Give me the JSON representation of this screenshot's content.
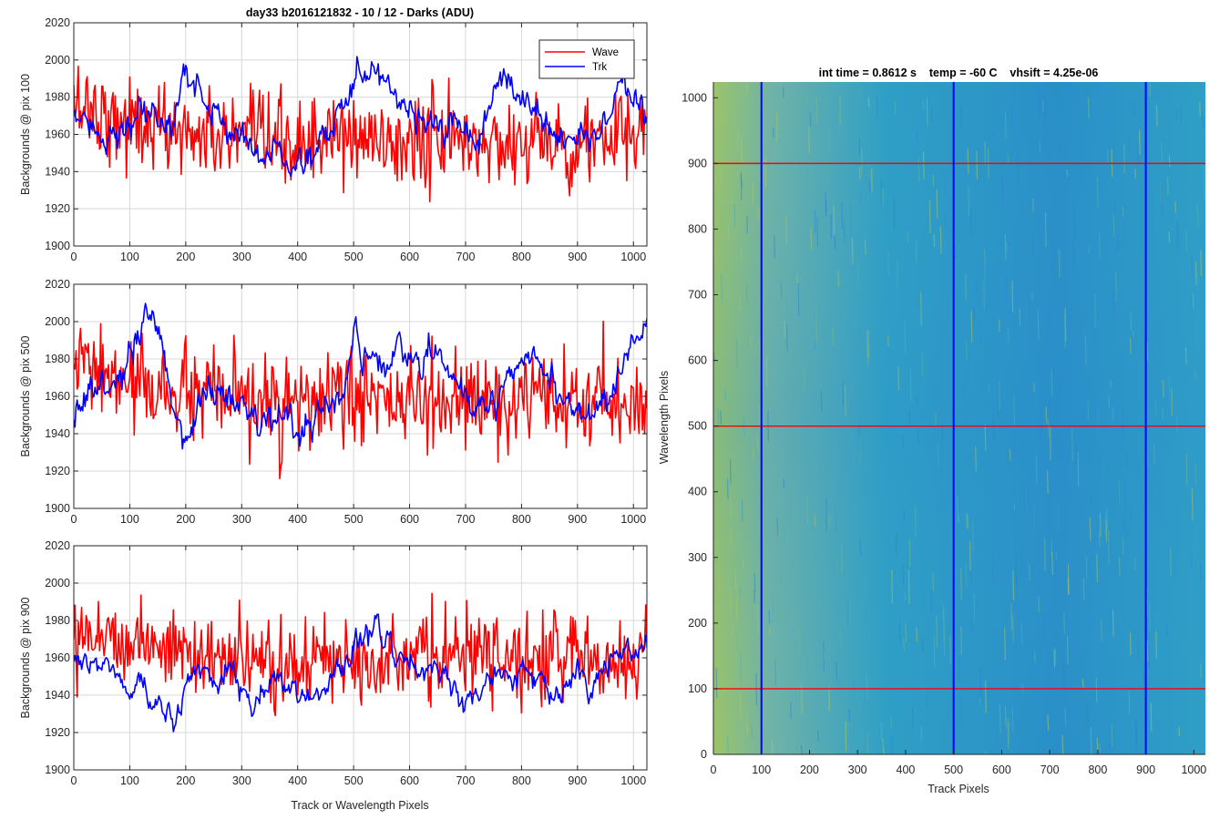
{
  "figure": {
    "title": "day33 b2016121832 - 10 / 12 - Darks (ADU)",
    "heatmap_title": "int time = 0.8612 s    temp = -60 C    vhsift = 4.25e-06",
    "colors": {
      "wave": "#ff0000",
      "trk": "#0000ff",
      "grid": "#d8d8d8",
      "heat_base": "#2f9fc6",
      "heat_warm": "#9cc468",
      "heat_cool": "#2a8fc8"
    }
  },
  "chart_data": [
    {
      "type": "line",
      "ylabel": "Backgrounds @ pix 100",
      "xlabel": "",
      "xlim": [
        0,
        1024
      ],
      "ylim": [
        1900,
        2020
      ],
      "xticks": [
        0,
        100,
        200,
        300,
        400,
        500,
        600,
        700,
        800,
        900,
        1000
      ],
      "yticks": [
        1900,
        1920,
        1940,
        1960,
        1980,
        2000,
        2020
      ],
      "grid": true,
      "legend": "top-right",
      "series": [
        {
          "name": "Wave",
          "color": "#ff0000",
          "x": [
            0,
            20,
            40,
            60,
            80,
            100,
            120,
            140,
            160,
            180,
            200,
            220,
            240,
            260,
            280,
            300,
            320,
            340,
            360,
            380,
            400,
            420,
            440,
            460,
            480,
            500,
            520,
            540,
            560,
            580,
            600,
            620,
            640,
            660,
            680,
            700,
            720,
            740,
            760,
            780,
            800,
            820,
            840,
            860,
            880,
            900,
            920,
            940,
            960,
            980,
            1000,
            1020
          ],
          "values": [
            1975,
            1978,
            1972,
            1970,
            1968,
            1966,
            1965,
            1964,
            1963,
            1962,
            1961,
            1960,
            1959,
            1958,
            1957,
            1957,
            1956,
            1956,
            1955,
            1955,
            1955,
            1955,
            1956,
            1957,
            1958,
            1958,
            1957,
            1956,
            1956,
            1955,
            1955,
            1956,
            1957,
            1958,
            1957,
            1956,
            1955,
            1955,
            1955,
            1956,
            1957,
            1957,
            1956,
            1955,
            1955,
            1955,
            1956,
            1957,
            1957,
            1958,
            1958,
            1958
          ],
          "noise": 12
        },
        {
          "name": "Trk",
          "color": "#0000ff",
          "x": [
            0,
            20,
            40,
            60,
            80,
            100,
            120,
            140,
            160,
            180,
            200,
            220,
            240,
            260,
            280,
            300,
            320,
            340,
            360,
            380,
            400,
            420,
            440,
            460,
            480,
            500,
            520,
            540,
            560,
            580,
            600,
            620,
            640,
            660,
            680,
            700,
            720,
            740,
            760,
            780,
            800,
            820,
            840,
            860,
            880,
            900,
            920,
            940,
            960,
            980,
            1000,
            1020
          ],
          "values": [
            1972,
            1962,
            1965,
            1960,
            1958,
            1962,
            1970,
            1968,
            1963,
            1970,
            1995,
            1985,
            1975,
            1968,
            1962,
            1960,
            1955,
            1950,
            1948,
            1945,
            1943,
            1950,
            1955,
            1960,
            1975,
            1990,
            1995,
            1998,
            1990,
            1980,
            1975,
            1970,
            1965,
            1960,
            1962,
            1958,
            1955,
            1970,
            1990,
            1988,
            1980,
            1975,
            1970,
            1960,
            1955,
            1958,
            1960,
            1965,
            1972,
            1985,
            1975,
            1968
          ],
          "noise": 5
        }
      ]
    },
    {
      "type": "line",
      "ylabel": "Backgrounds @ pix 500",
      "xlabel": "",
      "xlim": [
        0,
        1024
      ],
      "ylim": [
        1900,
        2020
      ],
      "xticks": [
        0,
        100,
        200,
        300,
        400,
        500,
        600,
        700,
        800,
        900,
        1000
      ],
      "yticks": [
        1900,
        1920,
        1940,
        1960,
        1980,
        2000,
        2020
      ],
      "grid": true,
      "legend": "none",
      "series": [
        {
          "name": "Wave",
          "color": "#ff0000",
          "x": [
            0,
            20,
            40,
            60,
            80,
            100,
            120,
            140,
            160,
            180,
            200,
            220,
            240,
            260,
            280,
            300,
            320,
            340,
            360,
            380,
            400,
            420,
            440,
            460,
            480,
            500,
            520,
            540,
            560,
            580,
            600,
            620,
            640,
            660,
            680,
            700,
            720,
            740,
            760,
            780,
            800,
            820,
            840,
            860,
            880,
            900,
            920,
            940,
            960,
            980,
            1000,
            1020
          ],
          "values": [
            1975,
            1977,
            1972,
            1970,
            1968,
            1966,
            1965,
            1964,
            1963,
            1962,
            1961,
            1960,
            1959,
            1958,
            1957,
            1957,
            1956,
            1956,
            1955,
            1955,
            1955,
            1956,
            1957,
            1958,
            1959,
            1960,
            1959,
            1958,
            1958,
            1957,
            1956,
            1956,
            1957,
            1958,
            1957,
            1956,
            1955,
            1955,
            1955,
            1956,
            1956,
            1956,
            1955,
            1955,
            1955,
            1955,
            1956,
            1956,
            1956,
            1957,
            1957,
            1957
          ],
          "noise": 12
        },
        {
          "name": "Trk",
          "color": "#0000ff",
          "x": [
            0,
            20,
            40,
            60,
            80,
            100,
            120,
            140,
            160,
            180,
            200,
            220,
            240,
            260,
            280,
            300,
            320,
            340,
            360,
            380,
            400,
            420,
            440,
            460,
            480,
            500,
            520,
            540,
            560,
            580,
            600,
            620,
            640,
            660,
            680,
            700,
            720,
            740,
            760,
            780,
            800,
            820,
            840,
            860,
            880,
            900,
            920,
            940,
            960,
            980,
            1000,
            1020
          ],
          "values": [
            1950,
            1960,
            1965,
            1962,
            1970,
            1980,
            1990,
            2005,
            1980,
            1950,
            1935,
            1955,
            1965,
            1962,
            1958,
            1955,
            1950,
            1945,
            1950,
            1948,
            1940,
            1945,
            1950,
            1958,
            1965,
            1980,
            1985,
            1980,
            1975,
            1990,
            1980,
            1975,
            1985,
            1980,
            1970,
            1955,
            1950,
            1955,
            1960,
            1975,
            1980,
            1985,
            1975,
            1965,
            1955,
            1950,
            1955,
            1960,
            1965,
            1975,
            1985,
            1993
          ],
          "noise": 5
        }
      ]
    },
    {
      "type": "line",
      "ylabel": "Backgrounds @ pix 900",
      "xlabel": "Track or Wavelength Pixels",
      "xlim": [
        0,
        1024
      ],
      "ylim": [
        1900,
        2020
      ],
      "xticks": [
        0,
        100,
        200,
        300,
        400,
        500,
        600,
        700,
        800,
        900,
        1000
      ],
      "yticks": [
        1900,
        1920,
        1940,
        1960,
        1980,
        2000,
        2020
      ],
      "grid": true,
      "legend": "none",
      "series": [
        {
          "name": "Wave",
          "color": "#ff0000",
          "x": [
            0,
            20,
            40,
            60,
            80,
            100,
            120,
            140,
            160,
            180,
            200,
            220,
            240,
            260,
            280,
            300,
            320,
            340,
            360,
            380,
            400,
            420,
            440,
            460,
            480,
            500,
            520,
            540,
            560,
            580,
            600,
            620,
            640,
            660,
            680,
            700,
            720,
            740,
            760,
            780,
            800,
            820,
            840,
            860,
            880,
            900,
            920,
            940,
            960,
            980,
            1000,
            1020
          ],
          "values": [
            1978,
            1976,
            1974,
            1972,
            1970,
            1970,
            1969,
            1968,
            1967,
            1965,
            1963,
            1961,
            1960,
            1959,
            1958,
            1957,
            1956,
            1956,
            1956,
            1956,
            1956,
            1957,
            1958,
            1959,
            1960,
            1962,
            1963,
            1962,
            1961,
            1960,
            1960,
            1960,
            1960,
            1961,
            1961,
            1960,
            1960,
            1960,
            1960,
            1960,
            1961,
            1961,
            1961,
            1961,
            1960,
            1960,
            1960,
            1960,
            1960,
            1960,
            1960,
            1960
          ],
          "noise": 11
        },
        {
          "name": "Trk",
          "color": "#0000ff",
          "x": [
            0,
            20,
            40,
            60,
            80,
            100,
            120,
            140,
            160,
            180,
            200,
            220,
            240,
            260,
            280,
            300,
            320,
            340,
            360,
            380,
            400,
            420,
            440,
            460,
            480,
            500,
            520,
            540,
            560,
            580,
            600,
            620,
            640,
            660,
            680,
            700,
            720,
            740,
            760,
            780,
            800,
            820,
            840,
            860,
            880,
            900,
            920,
            940,
            960,
            980,
            1000,
            1020
          ],
          "values": [
            1960,
            1952,
            1955,
            1958,
            1950,
            1940,
            1948,
            1935,
            1935,
            1925,
            1945,
            1955,
            1950,
            1945,
            1955,
            1945,
            1935,
            1940,
            1950,
            1945,
            1938,
            1940,
            1945,
            1950,
            1955,
            1965,
            1972,
            1980,
            1970,
            1960,
            1955,
            1950,
            1952,
            1955,
            1945,
            1935,
            1940,
            1950,
            1955,
            1950,
            1955,
            1950,
            1945,
            1935,
            1945,
            1950,
            1940,
            1950,
            1960,
            1965,
            1960,
            1968
          ],
          "noise": 4
        }
      ]
    },
    {
      "type": "heatmap",
      "title": "int time = 0.8612 s    temp = -60 C    vhsift = 4.25e-06",
      "xlabel": "Track Pixels",
      "ylabel": "Wavelength Pixels",
      "xlim": [
        0,
        1024
      ],
      "ylim": [
        0,
        1024
      ],
      "xticks": [
        0,
        100,
        200,
        300,
        400,
        500,
        600,
        700,
        800,
        900,
        1000
      ],
      "yticks": [
        0,
        100,
        200,
        300,
        400,
        500,
        600,
        700,
        800,
        900,
        1000
      ],
      "vertical_markers": [
        100,
        500,
        900
      ],
      "horizontal_markers": [
        100,
        500,
        900
      ],
      "vertical_marker_color": "#0000ff",
      "horizontal_marker_color": "#ff0000"
    }
  ]
}
